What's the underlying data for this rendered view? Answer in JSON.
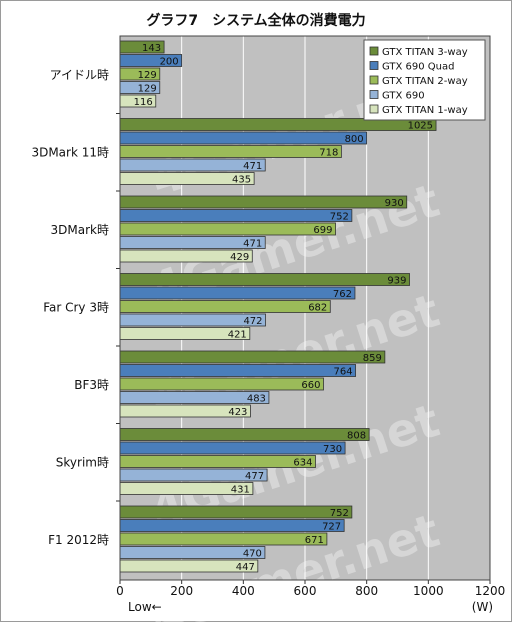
{
  "chart_data": {
    "type": "bar",
    "orientation": "horizontal",
    "title": "グラフ7　システム全体の消費電力",
    "categories": [
      "アイドル時",
      "3DMark 11時",
      "3DMark時",
      "Far Cry 3時",
      "BF3時",
      "Skyrim時",
      "F1 2012時"
    ],
    "series": [
      {
        "name": "GTX TITAN 3-way",
        "color": "#6b8c3a",
        "values": [
          143,
          1025,
          930,
          939,
          859,
          808,
          752
        ]
      },
      {
        "name": "GTX 690 Quad",
        "color": "#4a7ebb",
        "values": [
          200,
          800,
          752,
          762,
          764,
          730,
          727
        ]
      },
      {
        "name": "GTX TITAN 2-way",
        "color": "#9bbb59",
        "values": [
          129,
          718,
          699,
          682,
          660,
          634,
          671
        ]
      },
      {
        "name": "GTX 690",
        "color": "#95b3d7",
        "values": [
          129,
          471,
          471,
          472,
          483,
          477,
          470
        ]
      },
      {
        "name": "GTX TITAN 1-way",
        "color": "#d7e4bd",
        "values": [
          116,
          435,
          429,
          421,
          423,
          431,
          447
        ]
      }
    ],
    "xlim": [
      0,
      1200
    ],
    "xticks": [
      0,
      200,
      400,
      600,
      800,
      1000,
      1200
    ],
    "xunit": "(W)",
    "note": "Low←",
    "grid": true,
    "legend": "top-right"
  },
  "watermark": "4Gamer.net",
  "colors": {
    "plot_background": "#c0c0c0",
    "gridline": "#ffffff",
    "bar_stroke": "#333333"
  }
}
